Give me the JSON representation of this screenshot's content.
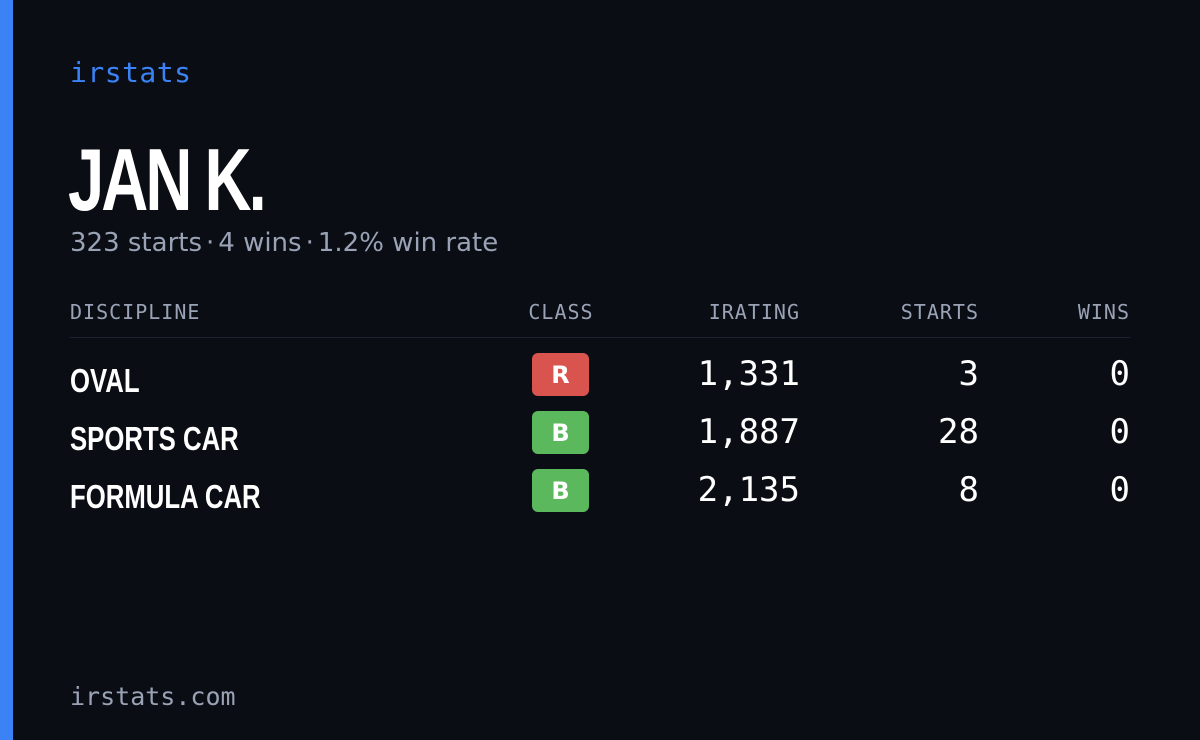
{
  "brand": "irstats",
  "player": {
    "name": "JAN K.",
    "starts": "323 starts",
    "wins": "4 wins",
    "win_rate": "1.2% win rate",
    "separator": "·"
  },
  "table": {
    "headers": {
      "discipline": "DISCIPLINE",
      "class": "CLASS",
      "irating": "IRATING",
      "starts": "STARTS",
      "wins": "WINS"
    },
    "rows": [
      {
        "discipline": "OVAL",
        "class": "R",
        "class_color": "#d9534f",
        "irating": "1,331",
        "starts": "3",
        "wins": "0"
      },
      {
        "discipline": "SPORTS CAR",
        "class": "B",
        "class_color": "#5cb85c",
        "irating": "1,887",
        "starts": "28",
        "wins": "0"
      },
      {
        "discipline": "FORMULA CAR",
        "class": "B",
        "class_color": "#5cb85c",
        "irating": "2,135",
        "starts": "8",
        "wins": "0"
      }
    ]
  },
  "footer": {
    "url": "irstats.com"
  },
  "colors": {
    "accent": "#3b82f6",
    "background": "#0a0d14",
    "muted": "#9aa3b5"
  }
}
